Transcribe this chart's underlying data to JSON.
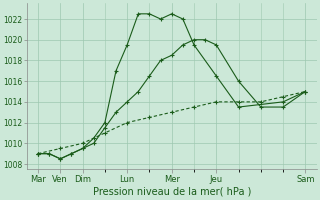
{
  "background_color": "#cce8d8",
  "grid_color": "#9ec8b0",
  "line_color": "#1a5c1a",
  "xlabel": "Pression niveau de la mer( hPa )",
  "ylim": [
    1007.5,
    1023.5
  ],
  "yticks": [
    1008,
    1010,
    1012,
    1014,
    1016,
    1018,
    1020,
    1022
  ],
  "day_ticks": [
    0,
    1,
    2,
    4,
    6,
    8,
    12
  ],
  "day_labels": [
    "Mar",
    "Ven",
    "Dim",
    "Lun",
    "Mer",
    "Jeu",
    "Sam"
  ],
  "series1_x": [
    0,
    0.5,
    1,
    1.5,
    2,
    2.5,
    3,
    3.5,
    4,
    4.5,
    5,
    5.5,
    6,
    6.5,
    7,
    8,
    9,
    11,
    12
  ],
  "series1_y": [
    1009.0,
    1009.0,
    1008.5,
    1009.0,
    1009.5,
    1010.5,
    1012.0,
    1017.0,
    1019.5,
    1022.5,
    1022.5,
    1022.0,
    1022.5,
    1022.0,
    1019.5,
    1016.5,
    1013.5,
    1014.0,
    1015.0
  ],
  "series2_x": [
    0,
    0.5,
    1,
    1.5,
    2,
    2.5,
    3,
    3.5,
    4,
    4.5,
    5,
    5.5,
    6,
    6.5,
    7,
    7.5,
    8,
    9,
    10,
    11,
    12
  ],
  "series2_y": [
    1009.0,
    1009.0,
    1008.5,
    1009.0,
    1009.5,
    1010.0,
    1011.5,
    1013.0,
    1014.0,
    1015.0,
    1016.5,
    1018.0,
    1018.5,
    1019.5,
    1020.0,
    1020.0,
    1019.5,
    1016.0,
    1013.5,
    1013.5,
    1015.0
  ],
  "series3_x": [
    0,
    1,
    2,
    3,
    4,
    5,
    6,
    7,
    8,
    9,
    10,
    11,
    12
  ],
  "series3_y": [
    1009.0,
    1009.5,
    1010.0,
    1011.0,
    1012.0,
    1012.5,
    1013.0,
    1013.5,
    1014.0,
    1014.0,
    1014.0,
    1014.5,
    1015.0
  ]
}
